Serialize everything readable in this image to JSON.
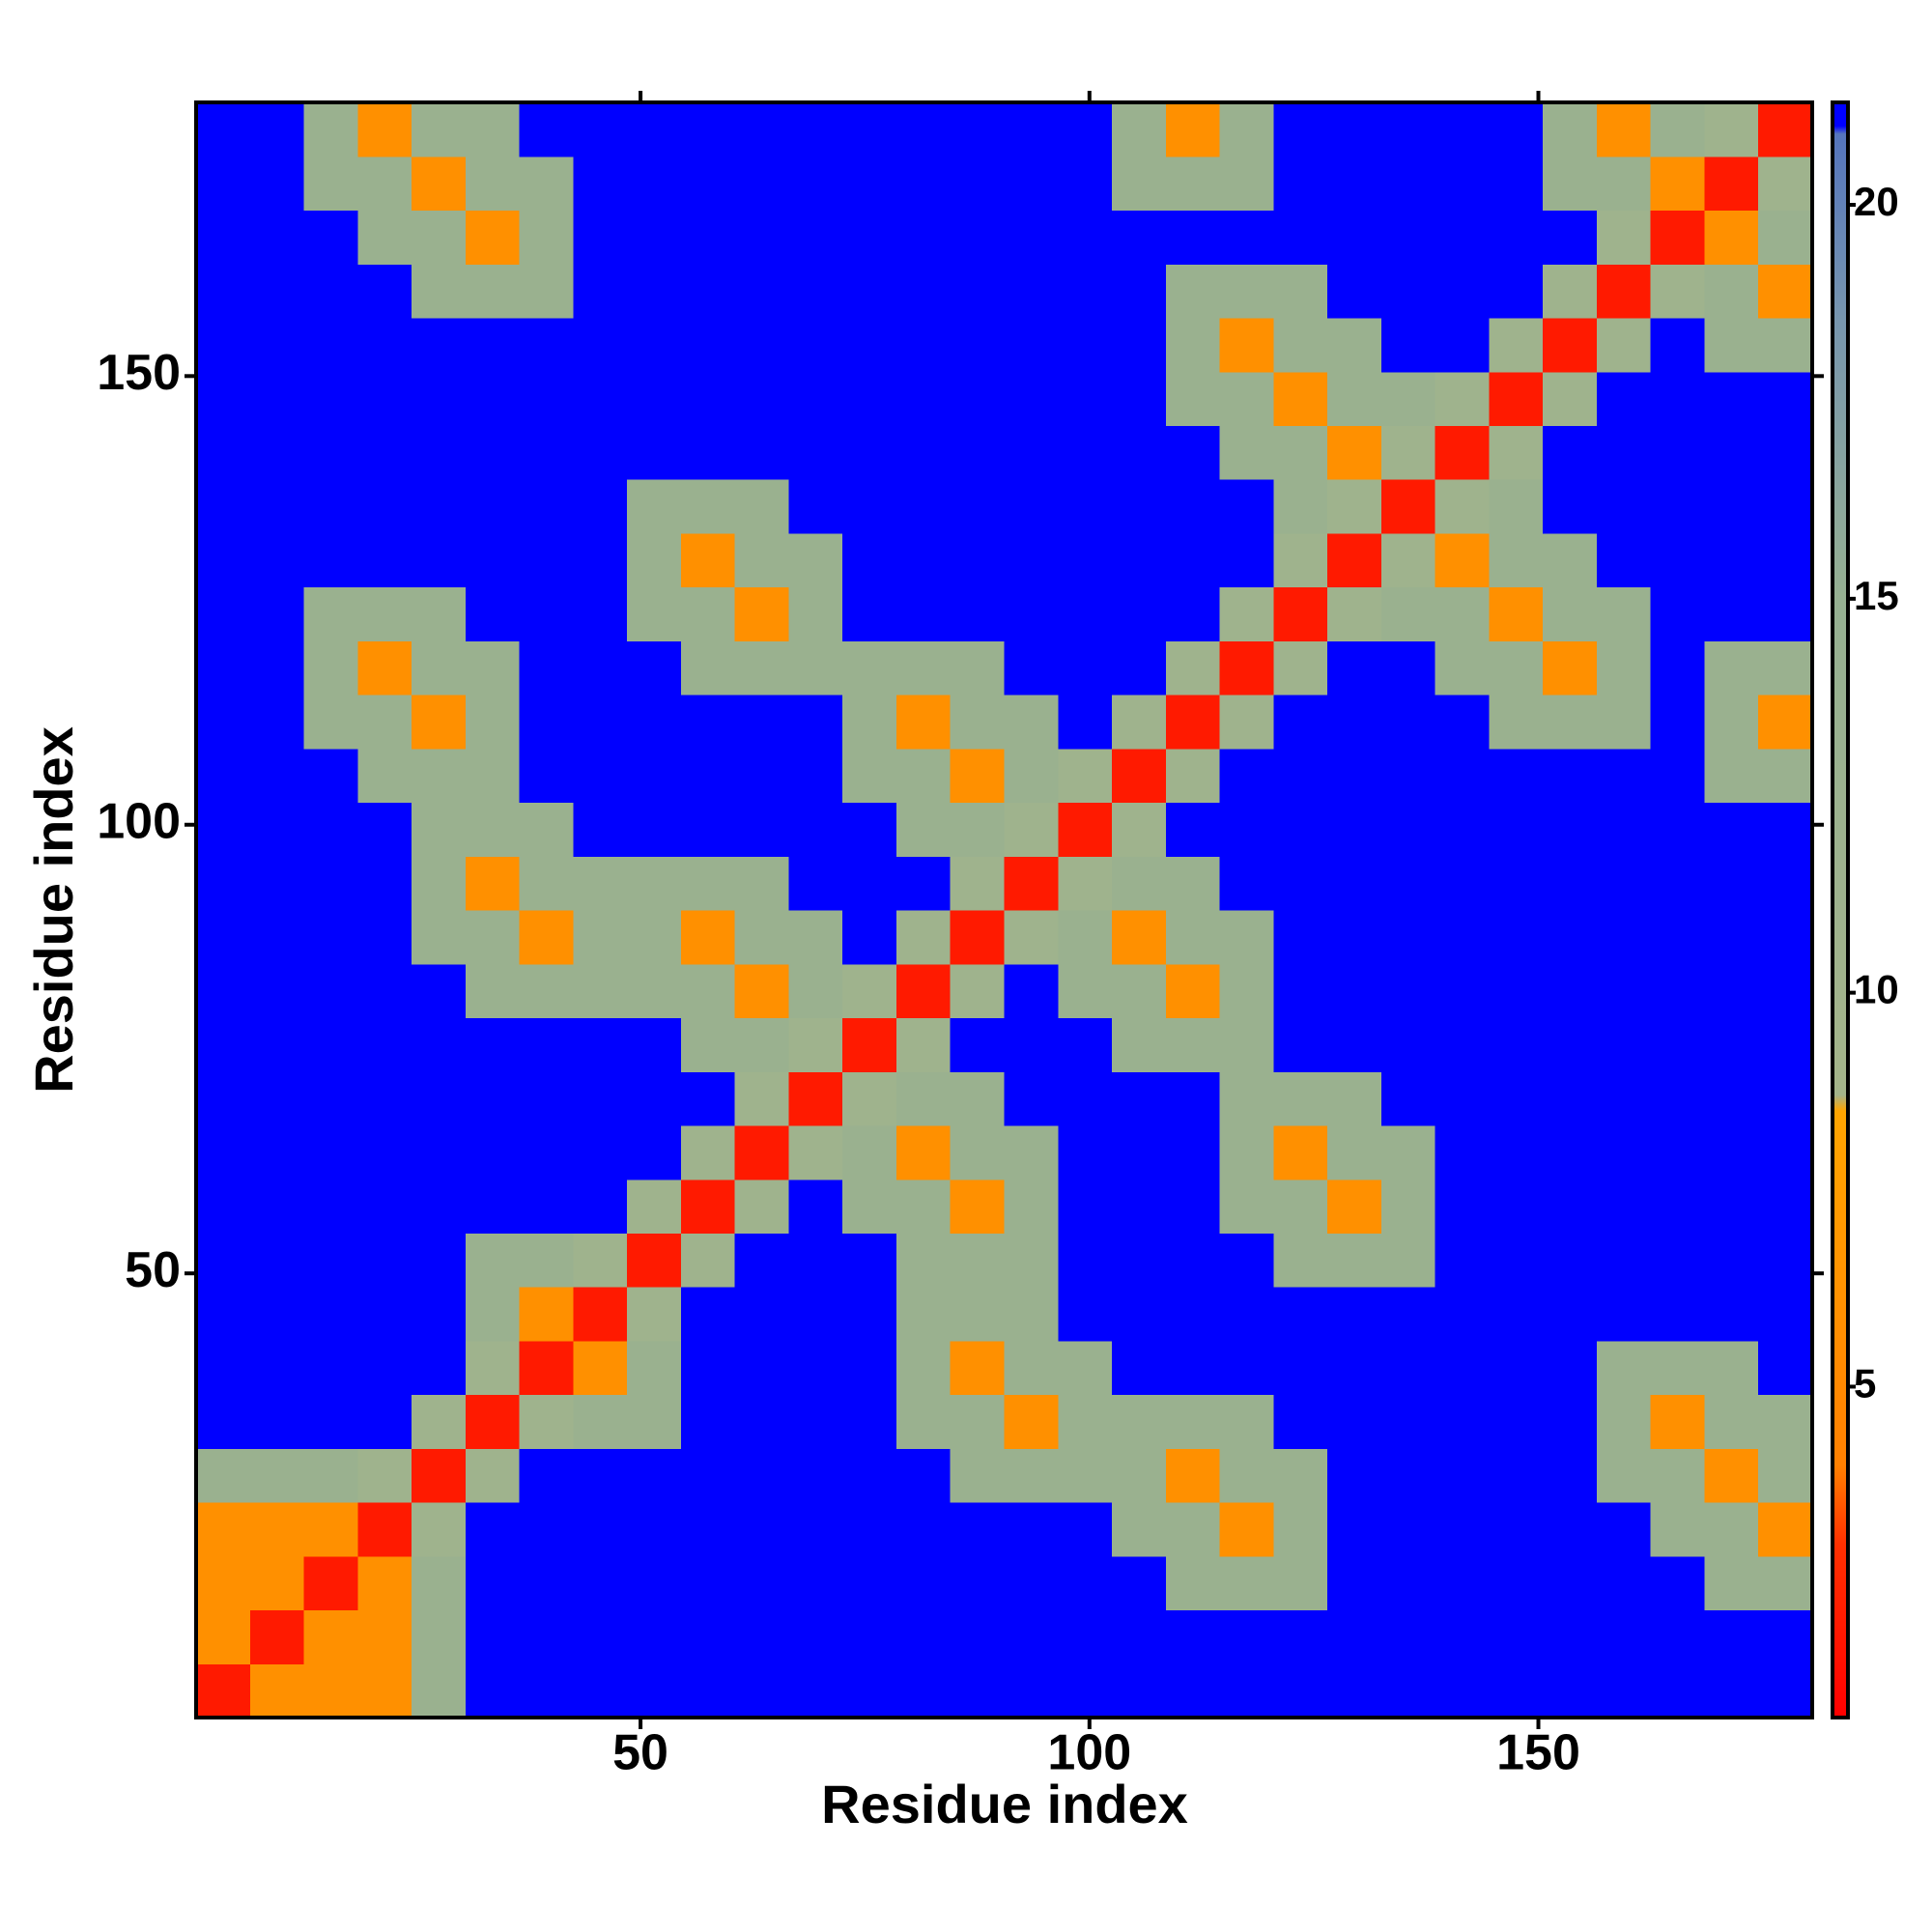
{
  "chart_data": {
    "type": "heatmap",
    "xlabel": "Residue index",
    "ylabel": "Residue index",
    "xlim": [
      0.5,
      180.5
    ],
    "ylim": [
      0.5,
      180.5
    ],
    "xticks": [
      50,
      100,
      150
    ],
    "yticks": [
      50,
      100,
      150
    ],
    "zlim": [
      0.8,
      21.3
    ],
    "zticks": [
      5,
      10,
      15,
      20
    ],
    "colorscale": [
      [
        0.8,
        "#ff0000"
      ],
      [
        3,
        "#ff3000"
      ],
      [
        4,
        "#ff8000"
      ],
      [
        8.5,
        "#ffa500"
      ],
      [
        8.7,
        "#a4b48a"
      ],
      [
        15,
        "#96b092"
      ],
      [
        18.5,
        "#7896ae"
      ],
      [
        20.9,
        "#5575bd"
      ],
      [
        21,
        "#0000ff"
      ],
      [
        21.3,
        "#0000ff"
      ]
    ],
    "z": [
      [
        2,
        6,
        6,
        6,
        13,
        21,
        21,
        21,
        21,
        21,
        21,
        21,
        21,
        21,
        21,
        21,
        21,
        21,
        21,
        21,
        21,
        21,
        21,
        21,
        21,
        21,
        21,
        21,
        21,
        21
      ],
      [
        6,
        2,
        6,
        6,
        13,
        21,
        21,
        21,
        21,
        21,
        21,
        21,
        21,
        21,
        21,
        21,
        21,
        21,
        21,
        21,
        21,
        21,
        21,
        21,
        21,
        21,
        21,
        21,
        21,
        21
      ],
      [
        6,
        6,
        2,
        6,
        13,
        21,
        21,
        21,
        21,
        21,
        21,
        21,
        21,
        21,
        21,
        21,
        21,
        21,
        13,
        13,
        13,
        21,
        21,
        21,
        21,
        21,
        21,
        21,
        13,
        13
      ],
      [
        6,
        6,
        6,
        2,
        11,
        21,
        21,
        21,
        21,
        21,
        21,
        21,
        21,
        21,
        21,
        21,
        21,
        13,
        13,
        6,
        13,
        21,
        21,
        21,
        21,
        21,
        21,
        13,
        13,
        6
      ],
      [
        13,
        13,
        13,
        11,
        2,
        11,
        21,
        21,
        21,
        21,
        21,
        21,
        21,
        21,
        13,
        13,
        13,
        13,
        6,
        13,
        13,
        21,
        21,
        21,
        21,
        21,
        13,
        13,
        6,
        13
      ],
      [
        21,
        21,
        21,
        21,
        11,
        2,
        11,
        13,
        13,
        21,
        21,
        21,
        21,
        13,
        13,
        6,
        13,
        13,
        13,
        13,
        21,
        21,
        21,
        21,
        21,
        21,
        13,
        6,
        13,
        13
      ],
      [
        21,
        21,
        21,
        21,
        21,
        11,
        2,
        6,
        13,
        21,
        21,
        21,
        21,
        13,
        6,
        13,
        13,
        21,
        21,
        21,
        21,
        21,
        21,
        21,
        21,
        21,
        13,
        13,
        13,
        21
      ],
      [
        21,
        21,
        21,
        21,
        21,
        13,
        6,
        2,
        11,
        21,
        21,
        21,
        21,
        13,
        13,
        13,
        21,
        21,
        21,
        21,
        21,
        21,
        21,
        21,
        21,
        21,
        21,
        21,
        21,
        21
      ],
      [
        21,
        21,
        21,
        21,
        21,
        13,
        13,
        11,
        2,
        11,
        21,
        21,
        21,
        13,
        13,
        13,
        21,
        21,
        21,
        21,
        13,
        13,
        13,
        21,
        21,
        21,
        21,
        21,
        21,
        21
      ],
      [
        21,
        21,
        21,
        21,
        21,
        21,
        21,
        21,
        11,
        2,
        11,
        21,
        13,
        13,
        6,
        13,
        21,
        21,
        21,
        13,
        13,
        6,
        13,
        21,
        21,
        21,
        21,
        21,
        21,
        21
      ],
      [
        21,
        21,
        21,
        21,
        21,
        21,
        21,
        21,
        21,
        11,
        2,
        11,
        13,
        6,
        13,
        13,
        21,
        21,
        21,
        13,
        6,
        13,
        13,
        21,
        21,
        21,
        21,
        21,
        21,
        21
      ],
      [
        21,
        21,
        21,
        21,
        21,
        21,
        21,
        21,
        21,
        21,
        11,
        2,
        11,
        13,
        13,
        21,
        21,
        21,
        21,
        13,
        13,
        13,
        21,
        21,
        21,
        21,
        21,
        21,
        21,
        21
      ],
      [
        21,
        21,
        21,
        21,
        21,
        21,
        21,
        21,
        21,
        13,
        13,
        11,
        2,
        11,
        21,
        21,
        21,
        13,
        13,
        13,
        21,
        21,
        21,
        21,
        21,
        21,
        21,
        21,
        21,
        21
      ],
      [
        21,
        21,
        21,
        21,
        21,
        13,
        13,
        13,
        13,
        13,
        6,
        13,
        11,
        2,
        11,
        21,
        13,
        13,
        6,
        13,
        21,
        21,
        21,
        21,
        21,
        21,
        21,
        21,
        21,
        21
      ],
      [
        21,
        21,
        21,
        21,
        13,
        13,
        6,
        13,
        13,
        6,
        13,
        13,
        21,
        11,
        2,
        11,
        13,
        6,
        13,
        13,
        21,
        21,
        21,
        21,
        21,
        21,
        21,
        21,
        21,
        21
      ],
      [
        21,
        21,
        21,
        21,
        13,
        6,
        13,
        13,
        13,
        13,
        13,
        21,
        21,
        21,
        11,
        2,
        11,
        13,
        13,
        21,
        21,
        21,
        21,
        21,
        21,
        21,
        21,
        21,
        21,
        21
      ],
      [
        21,
        21,
        21,
        21,
        13,
        13,
        13,
        21,
        21,
        21,
        21,
        21,
        21,
        13,
        13,
        11,
        2,
        11,
        21,
        21,
        21,
        21,
        21,
        21,
        21,
        21,
        21,
        21,
        21,
        21
      ],
      [
        21,
        21,
        21,
        13,
        13,
        13,
        21,
        21,
        21,
        21,
        21,
        21,
        13,
        13,
        6,
        13,
        11,
        2,
        11,
        21,
        21,
        21,
        21,
        21,
        21,
        21,
        21,
        21,
        13,
        13
      ],
      [
        21,
        21,
        13,
        13,
        6,
        13,
        21,
        21,
        21,
        21,
        21,
        21,
        13,
        6,
        13,
        13,
        21,
        11,
        2,
        11,
        21,
        21,
        21,
        21,
        13,
        13,
        13,
        21,
        13,
        6
      ],
      [
        21,
        21,
        13,
        6,
        13,
        13,
        21,
        21,
        21,
        13,
        13,
        13,
        13,
        13,
        13,
        21,
        21,
        21,
        11,
        2,
        11,
        21,
        21,
        13,
        13,
        6,
        13,
        21,
        13,
        13
      ],
      [
        21,
        21,
        13,
        13,
        13,
        21,
        21,
        21,
        13,
        13,
        6,
        13,
        21,
        21,
        21,
        21,
        21,
        21,
        21,
        11,
        2,
        11,
        13,
        13,
        6,
        13,
        13,
        21,
        21,
        21
      ],
      [
        21,
        21,
        21,
        21,
        21,
        21,
        21,
        21,
        13,
        6,
        13,
        13,
        21,
        21,
        21,
        21,
        21,
        21,
        21,
        21,
        11,
        2,
        11,
        6,
        13,
        13,
        21,
        21,
        21,
        21
      ],
      [
        21,
        21,
        21,
        21,
        21,
        21,
        21,
        21,
        13,
        13,
        13,
        21,
        21,
        21,
        21,
        21,
        21,
        21,
        21,
        21,
        13,
        11,
        2,
        11,
        13,
        21,
        21,
        21,
        21,
        21
      ],
      [
        21,
        21,
        21,
        21,
        21,
        21,
        21,
        21,
        21,
        21,
        21,
        21,
        21,
        21,
        21,
        21,
        21,
        21,
        21,
        13,
        13,
        6,
        11,
        2,
        11,
        21,
        21,
        21,
        21,
        21
      ],
      [
        21,
        21,
        21,
        21,
        21,
        21,
        21,
        21,
        21,
        21,
        21,
        21,
        21,
        21,
        21,
        21,
        21,
        21,
        13,
        13,
        6,
        13,
        13,
        11,
        2,
        11,
        21,
        21,
        21,
        21
      ],
      [
        21,
        21,
        21,
        21,
        21,
        21,
        21,
        21,
        21,
        21,
        21,
        21,
        21,
        21,
        21,
        21,
        21,
        21,
        13,
        6,
        13,
        13,
        21,
        21,
        11,
        2,
        11,
        21,
        13,
        13
      ],
      [
        21,
        21,
        21,
        21,
        13,
        13,
        13,
        21,
        21,
        21,
        21,
        21,
        21,
        21,
        21,
        21,
        21,
        21,
        13,
        13,
        13,
        21,
        21,
        21,
        21,
        11,
        2,
        11,
        13,
        6
      ],
      [
        21,
        21,
        21,
        13,
        13,
        6,
        13,
        21,
        21,
        21,
        21,
        21,
        21,
        21,
        21,
        21,
        21,
        21,
        21,
        21,
        21,
        21,
        21,
        21,
        21,
        21,
        11,
        2,
        6,
        13
      ],
      [
        21,
        21,
        13,
        13,
        6,
        13,
        13,
        21,
        21,
        21,
        21,
        21,
        21,
        21,
        21,
        21,
        21,
        13,
        13,
        13,
        21,
        21,
        21,
        21,
        21,
        13,
        13,
        6,
        2,
        11
      ],
      [
        21,
        21,
        13,
        6,
        13,
        13,
        21,
        21,
        21,
        21,
        21,
        21,
        21,
        21,
        21,
        21,
        21,
        13,
        6,
        13,
        21,
        21,
        21,
        21,
        21,
        13,
        6,
        13,
        11,
        2
      ]
    ]
  }
}
